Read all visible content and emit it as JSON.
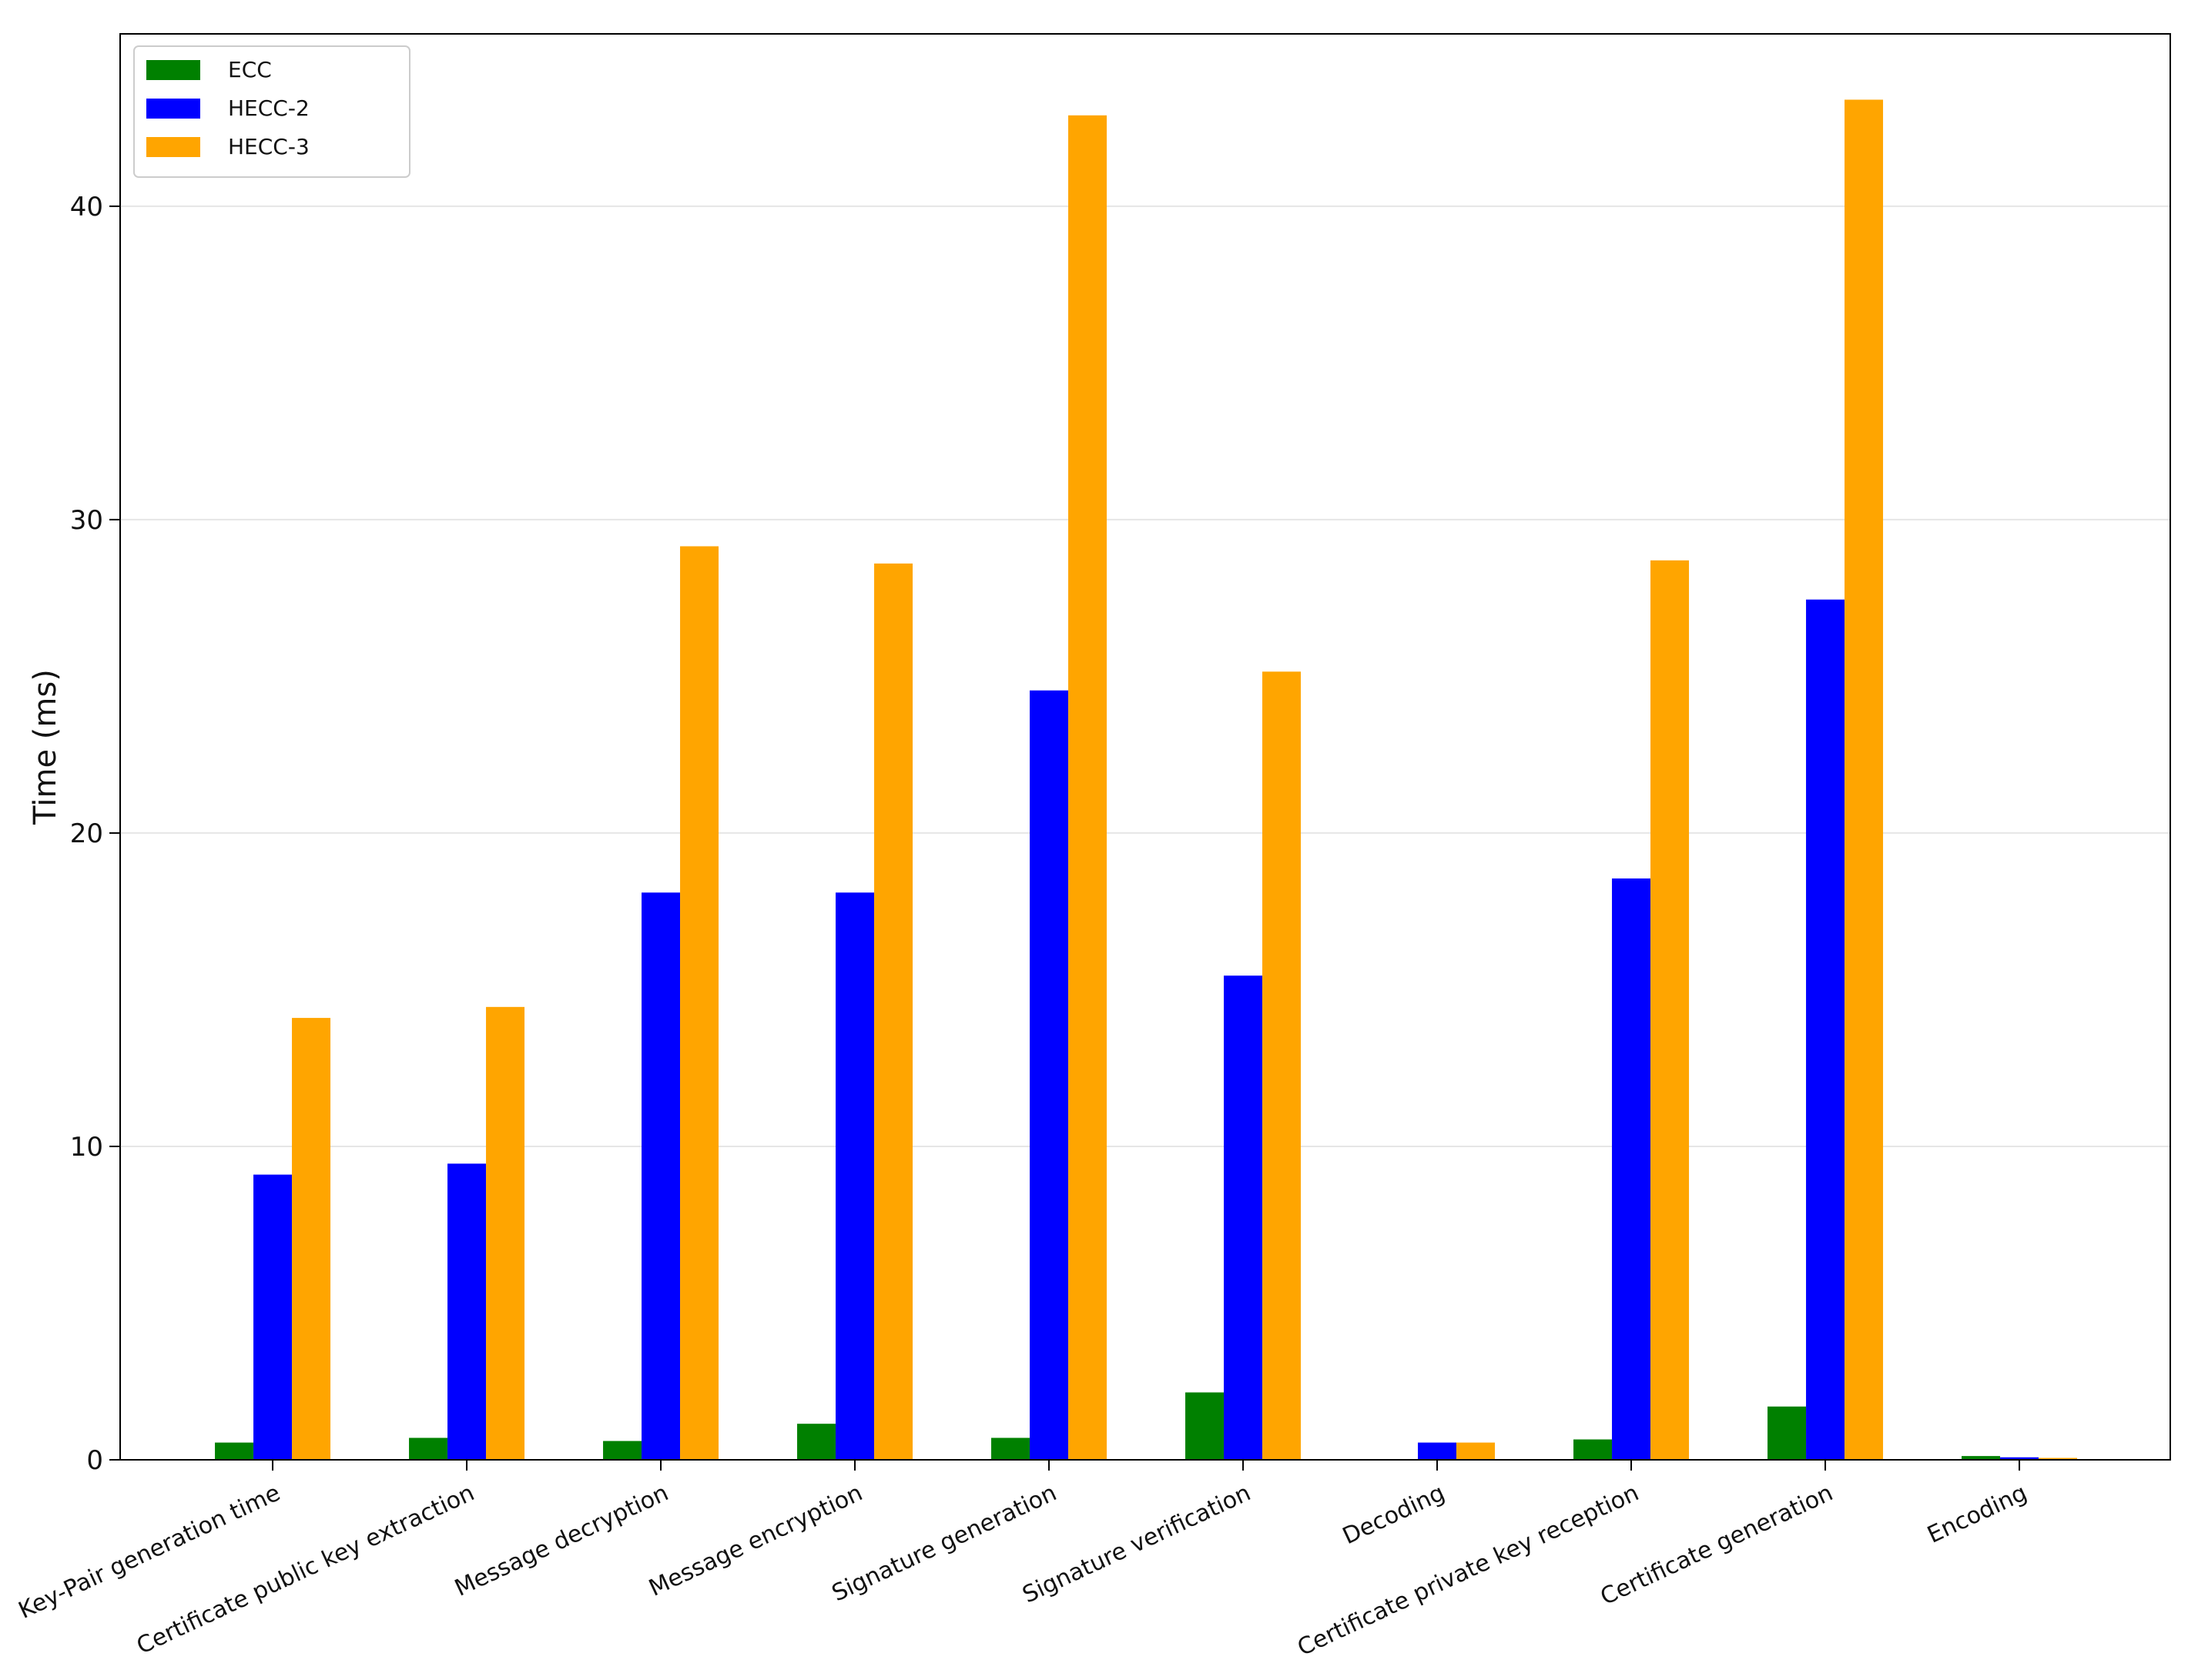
{
  "chart_data": {
    "type": "bar",
    "title": "",
    "xlabel": "",
    "ylabel": "Time (ms)",
    "ylim": [
      0,
      45.5
    ],
    "yticks": [
      0,
      10,
      20,
      30,
      40
    ],
    "grid": "horizontal",
    "legend_position": "top-left",
    "categories": [
      "Key-Pair generation time",
      "Certificate public key extraction",
      "Message decryption",
      "Message encryption",
      "Signature generation",
      "Signature verification",
      "Decoding",
      "Certificate private key reception",
      "Certificate generation",
      "Encoding"
    ],
    "series": [
      {
        "name": "ECC",
        "color": "#008000",
        "values": [
          0.55,
          0.7,
          0.6,
          1.15,
          0.7,
          2.15,
          0,
          0.65,
          1.7,
          0.12
        ]
      },
      {
        "name": "HECC-2",
        "color": "#0000ff",
        "values": [
          9.1,
          9.45,
          18.1,
          18.1,
          24.55,
          15.45,
          0.55,
          18.55,
          27.45,
          0.08
        ]
      },
      {
        "name": "HECC-3",
        "color": "#ffa500",
        "values": [
          14.1,
          14.45,
          29.15,
          28.6,
          42.9,
          25.15,
          0.55,
          28.7,
          43.4,
          0.06
        ]
      }
    ]
  }
}
